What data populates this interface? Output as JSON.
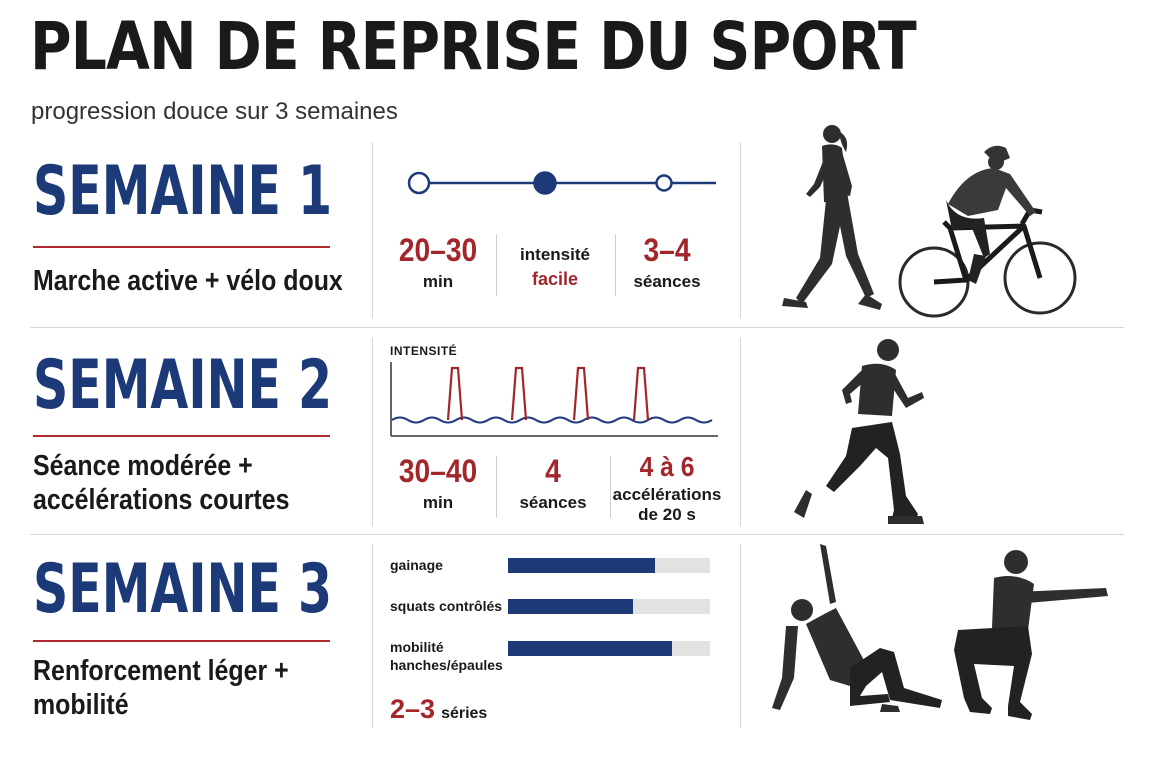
{
  "title": "PLAN DE REPRISE DU SPORT",
  "subtitle": "progression douce sur 3 semaines",
  "week1": {
    "title": "SEMAINE 1",
    "desc": "Marche active + vélo doux",
    "timeline_active_index": 1,
    "stats": [
      {
        "value": "20–30",
        "label": "min"
      },
      {
        "label": "intensité",
        "value": "facile"
      },
      {
        "value": "3–4",
        "label": "séances"
      }
    ]
  },
  "week2": {
    "title": "SEMAINE 2",
    "desc_line1": "Séance modérée +",
    "desc_line2": "accélérations courtes",
    "chart_label": "INTENSITÉ",
    "stats": [
      {
        "value": "30–40",
        "label": "min"
      },
      {
        "value": "4",
        "label": "séances"
      },
      {
        "value": "4 à 6",
        "label_line1": "accélérations",
        "label_line2": "de 20 s"
      }
    ]
  },
  "week3": {
    "title": "SEMAINE 3",
    "desc_line1": "Renforcement léger +",
    "desc_line2": "mobilité",
    "bars": [
      {
        "label": "gainage",
        "level": 0.73
      },
      {
        "label": "squats contrôlés",
        "level": 0.62
      },
      {
        "label_line1": "mobilité",
        "label_line2": "hanches/épaules",
        "level": 0.81
      }
    ],
    "series_value": "2–3",
    "series_label": "séries"
  },
  "colors": {
    "navy": "#1c3a78",
    "red": "#a3262b",
    "track": "#e2e2e2"
  }
}
